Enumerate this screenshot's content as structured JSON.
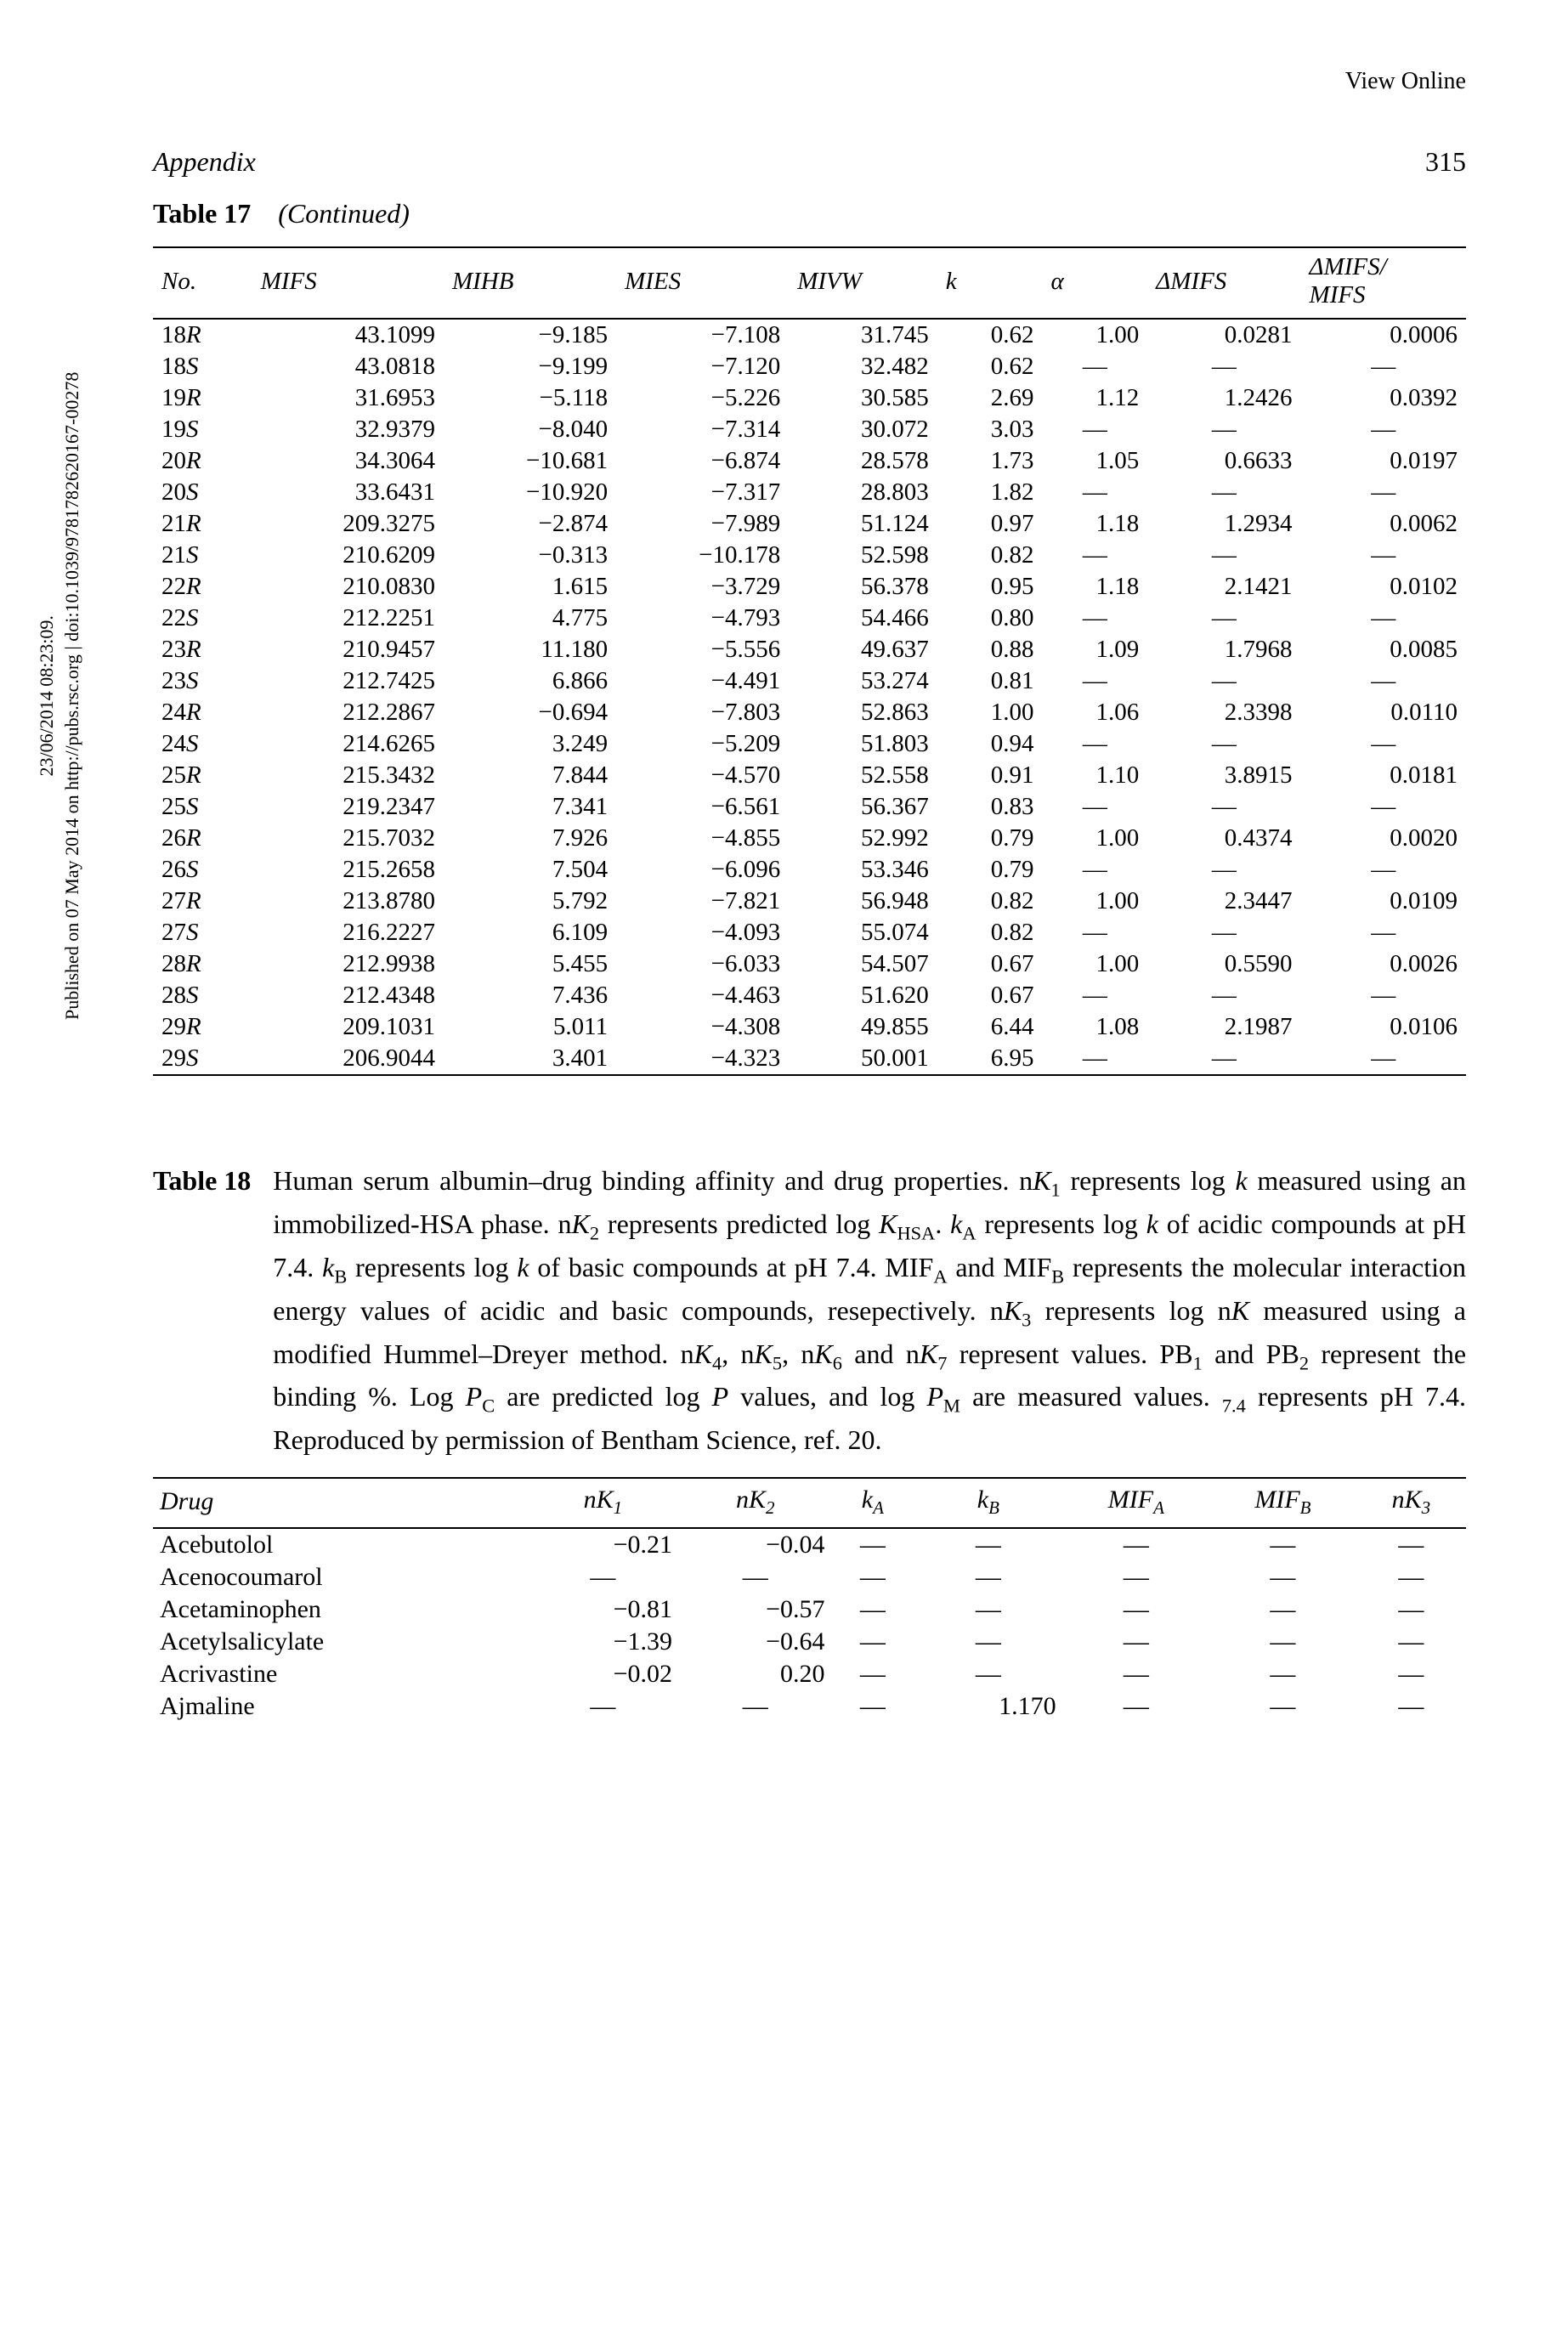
{
  "viewOnline": "View Online",
  "appendixLabel": "Appendix",
  "pageNumber": "315",
  "table17": {
    "titleBold": "Table 17",
    "titleItal": "(Continued)",
    "headers": [
      "No.",
      "MIFS",
      "MIHB",
      "MIES",
      "MIVW",
      "k",
      "α",
      "ΔMIFS",
      "ΔMIFS/\nMIFS"
    ],
    "rows": [
      {
        "no": "18",
        "rs": "R",
        "mifs": "43.1099",
        "mihb": "−9.185",
        "mies": "−7.108",
        "mivw": "31.745",
        "k": "0.62",
        "a": "1.00",
        "d": "0.0281",
        "dd": "0.0006"
      },
      {
        "no": "18",
        "rs": "S",
        "mifs": "43.0818",
        "mihb": "−9.199",
        "mies": "−7.120",
        "mivw": "32.482",
        "k": "0.62",
        "a": "—",
        "d": "—",
        "dd": "—"
      },
      {
        "no": "19",
        "rs": "R",
        "mifs": "31.6953",
        "mihb": "−5.118",
        "mies": "−5.226",
        "mivw": "30.585",
        "k": "2.69",
        "a": "1.12",
        "d": "1.2426",
        "dd": "0.0392"
      },
      {
        "no": "19",
        "rs": "S",
        "mifs": "32.9379",
        "mihb": "−8.040",
        "mies": "−7.314",
        "mivw": "30.072",
        "k": "3.03",
        "a": "—",
        "d": "—",
        "dd": "—"
      },
      {
        "no": "20",
        "rs": "R",
        "mifs": "34.3064",
        "mihb": "−10.681",
        "mies": "−6.874",
        "mivw": "28.578",
        "k": "1.73",
        "a": "1.05",
        "d": "0.6633",
        "dd": "0.0197"
      },
      {
        "no": "20",
        "rs": "S",
        "mifs": "33.6431",
        "mihb": "−10.920",
        "mies": "−7.317",
        "mivw": "28.803",
        "k": "1.82",
        "a": "—",
        "d": "—",
        "dd": "—"
      },
      {
        "no": "21",
        "rs": "R",
        "mifs": "209.3275",
        "mihb": "−2.874",
        "mies": "−7.989",
        "mivw": "51.124",
        "k": "0.97",
        "a": "1.18",
        "d": "1.2934",
        "dd": "0.0062"
      },
      {
        "no": "21",
        "rs": "S",
        "mifs": "210.6209",
        "mihb": "−0.313",
        "mies": "−10.178",
        "mivw": "52.598",
        "k": "0.82",
        "a": "—",
        "d": "—",
        "dd": "—"
      },
      {
        "no": "22",
        "rs": "R",
        "mifs": "210.0830",
        "mihb": "1.615",
        "mies": "−3.729",
        "mivw": "56.378",
        "k": "0.95",
        "a": "1.18",
        "d": "2.1421",
        "dd": "0.0102"
      },
      {
        "no": "22",
        "rs": "S",
        "mifs": "212.2251",
        "mihb": "4.775",
        "mies": "−4.793",
        "mivw": "54.466",
        "k": "0.80",
        "a": "—",
        "d": "—",
        "dd": "—"
      },
      {
        "no": "23",
        "rs": "R",
        "mifs": "210.9457",
        "mihb": "11.180",
        "mies": "−5.556",
        "mivw": "49.637",
        "k": "0.88",
        "a": "1.09",
        "d": "1.7968",
        "dd": "0.0085"
      },
      {
        "no": "23",
        "rs": "S",
        "mifs": "212.7425",
        "mihb": "6.866",
        "mies": "−4.491",
        "mivw": "53.274",
        "k": "0.81",
        "a": "—",
        "d": "—",
        "dd": "—"
      },
      {
        "no": "24",
        "rs": "R",
        "mifs": "212.2867",
        "mihb": "−0.694",
        "mies": "−7.803",
        "mivw": "52.863",
        "k": "1.00",
        "a": "1.06",
        "d": "2.3398",
        "dd": "0.0110"
      },
      {
        "no": "24",
        "rs": "S",
        "mifs": "214.6265",
        "mihb": "3.249",
        "mies": "−5.209",
        "mivw": "51.803",
        "k": "0.94",
        "a": "—",
        "d": "—",
        "dd": "—"
      },
      {
        "no": "25",
        "rs": "R",
        "mifs": "215.3432",
        "mihb": "7.844",
        "mies": "−4.570",
        "mivw": "52.558",
        "k": "0.91",
        "a": "1.10",
        "d": "3.8915",
        "dd": "0.0181"
      },
      {
        "no": "25",
        "rs": "S",
        "mifs": "219.2347",
        "mihb": "7.341",
        "mies": "−6.561",
        "mivw": "56.367",
        "k": "0.83",
        "a": "—",
        "d": "—",
        "dd": "—"
      },
      {
        "no": "26",
        "rs": "R",
        "mifs": "215.7032",
        "mihb": "7.926",
        "mies": "−4.855",
        "mivw": "52.992",
        "k": "0.79",
        "a": "1.00",
        "d": "0.4374",
        "dd": "0.0020"
      },
      {
        "no": "26",
        "rs": "S",
        "mifs": "215.2658",
        "mihb": "7.504",
        "mies": "−6.096",
        "mivw": "53.346",
        "k": "0.79",
        "a": "—",
        "d": "—",
        "dd": "—"
      },
      {
        "no": "27",
        "rs": "R",
        "mifs": "213.8780",
        "mihb": "5.792",
        "mies": "−7.821",
        "mivw": "56.948",
        "k": "0.82",
        "a": "1.00",
        "d": "2.3447",
        "dd": "0.0109"
      },
      {
        "no": "27",
        "rs": "S",
        "mifs": "216.2227",
        "mihb": "6.109",
        "mies": "−4.093",
        "mivw": "55.074",
        "k": "0.82",
        "a": "—",
        "d": "—",
        "dd": "—"
      },
      {
        "no": "28",
        "rs": "R",
        "mifs": "212.9938",
        "mihb": "5.455",
        "mies": "−6.033",
        "mivw": "54.507",
        "k": "0.67",
        "a": "1.00",
        "d": "0.5590",
        "dd": "0.0026"
      },
      {
        "no": "28",
        "rs": "S",
        "mifs": "212.4348",
        "mihb": "7.436",
        "mies": "−4.463",
        "mivw": "51.620",
        "k": "0.67",
        "a": "—",
        "d": "—",
        "dd": "—"
      },
      {
        "no": "29",
        "rs": "R",
        "mifs": "209.1031",
        "mihb": "5.011",
        "mies": "−4.308",
        "mivw": "49.855",
        "k": "6.44",
        "a": "1.08",
        "d": "2.1987",
        "dd": "0.0106"
      },
      {
        "no": "29",
        "rs": "S",
        "mifs": "206.9044",
        "mihb": "3.401",
        "mies": "−4.323",
        "mivw": "50.001",
        "k": "6.95",
        "a": "—",
        "d": "—",
        "dd": "—"
      }
    ]
  },
  "table18": {
    "label": "Table 18",
    "caption": "Human serum albumin–drug binding affinity and drug properties. nK₁ represents log k measured using an immobilized-HSA phase. nK₂ represents predicted log K_HSA. k_A represents log k of acidic compounds at pH 7.4. k_B represents log k of basic compounds at pH 7.4. MIF_A and MIF_B represents the molecular interaction energy values of acidic and basic compounds, resepectively. nK₃ represents log nK measured using a modified Hummel–Dreyer method. nK₄, nK₅, nK₆ and nK₇ represent values. PB₁ and PB₂ represent the binding %. Log P_C are predicted log P values, and log P_M are measured values. ₇.₄ represents pH 7.4. Reproduced by permission of Bentham Science, ref. 20.",
    "headers": [
      "Drug",
      "nK₁",
      "nK₂",
      "k_A",
      "k_B",
      "MIF_A",
      "MIF_B",
      "nK₃"
    ],
    "rows": [
      {
        "drug": "Acebutolol",
        "c": [
          "−0.21",
          "−0.04",
          "—",
          "—",
          "—",
          "—",
          "—"
        ]
      },
      {
        "drug": "Acenocoumarol",
        "c": [
          "—",
          "—",
          "—",
          "—",
          "—",
          "—",
          "—"
        ]
      },
      {
        "drug": "Acetaminophen",
        "c": [
          "−0.81",
          "−0.57",
          "—",
          "—",
          "—",
          "—",
          "—"
        ]
      },
      {
        "drug": "Acetylsalicylate",
        "c": [
          "−1.39",
          "−0.64",
          "—",
          "—",
          "—",
          "—",
          "—"
        ]
      },
      {
        "drug": "Acrivastine",
        "c": [
          "−0.02",
          "0.20",
          "—",
          "—",
          "—",
          "—",
          "—"
        ]
      },
      {
        "drug": "Ajmaline",
        "c": [
          "—",
          "—",
          "—",
          "1.170",
          "—",
          "—",
          "—"
        ]
      }
    ]
  },
  "sidetext": {
    "line1": "23/06/2014 08:23:09.",
    "line2": "Published on 07 May 2014 on http://pubs.rsc.org | doi:10.1039/9781782620167-00278"
  }
}
